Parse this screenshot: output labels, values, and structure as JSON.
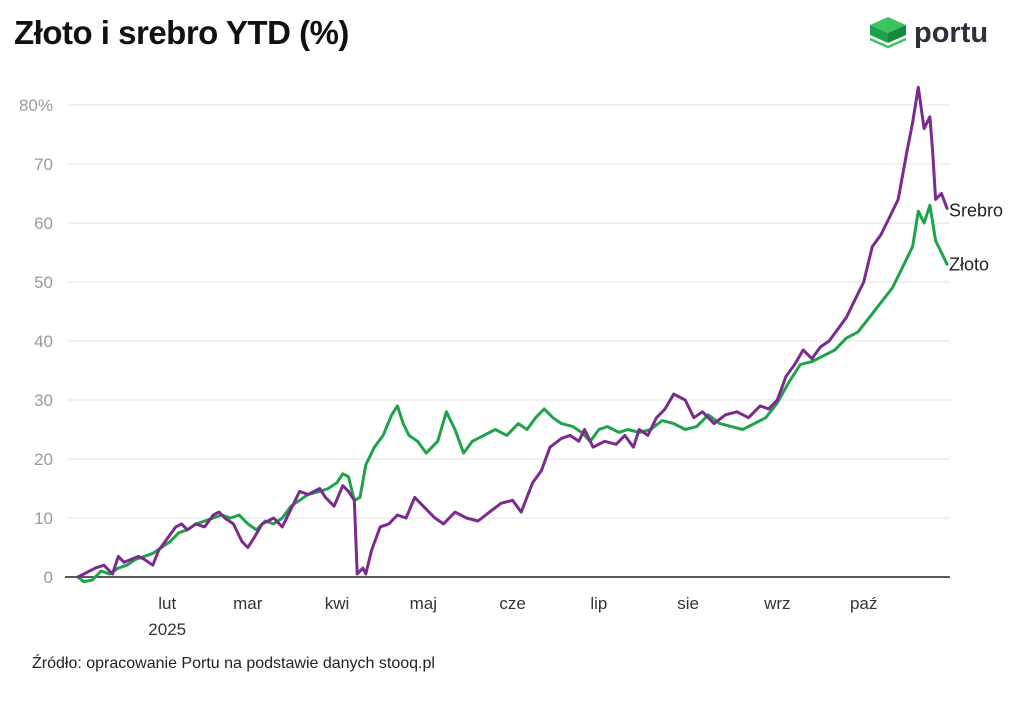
{
  "title": "Złoto i srebro YTD (%)",
  "logo": {
    "name": "portu",
    "icon": "portu-cube-icon",
    "color": "#1ea34a"
  },
  "source": "Źródło: opracowanie Portu na podstawie danych stooq.pl",
  "chart_data": {
    "type": "line",
    "title": "Złoto i srebro YTD (%)",
    "xlabel": "",
    "ylabel": "",
    "ylim": [
      0,
      80
    ],
    "y_ticks": [
      {
        "value": 0,
        "label": "0"
      },
      {
        "value": 10,
        "label": "10"
      },
      {
        "value": 20,
        "label": "20"
      },
      {
        "value": 30,
        "label": "30"
      },
      {
        "value": 40,
        "label": "40"
      },
      {
        "value": 50,
        "label": "50"
      },
      {
        "value": 60,
        "label": "60"
      },
      {
        "value": 70,
        "label": "70"
      },
      {
        "value": 80,
        "label": "80%"
      }
    ],
    "x_range": [
      "2025-01-01",
      "2025-10-31"
    ],
    "x_ticks": [
      {
        "date": "2025-02-01",
        "label": "lut",
        "sublabel": "2025"
      },
      {
        "date": "2025-03-01",
        "label": "mar"
      },
      {
        "date": "2025-04-01",
        "label": "kwi"
      },
      {
        "date": "2025-05-01",
        "label": "maj"
      },
      {
        "date": "2025-06-01",
        "label": "cze"
      },
      {
        "date": "2025-07-01",
        "label": "lip"
      },
      {
        "date": "2025-08-01",
        "label": "sie"
      },
      {
        "date": "2025-09-01",
        "label": "wrz"
      },
      {
        "date": "2025-10-01",
        "label": "paź"
      }
    ],
    "grid": true,
    "series": [
      {
        "name": "Srebro",
        "color": "#7b2a8e",
        "points": [
          [
            "2025-01-01",
            0
          ],
          [
            "2025-01-03",
            0.5
          ],
          [
            "2025-01-07",
            1.5
          ],
          [
            "2025-01-10",
            2
          ],
          [
            "2025-01-13",
            0.5
          ],
          [
            "2025-01-15",
            3.5
          ],
          [
            "2025-01-17",
            2.5
          ],
          [
            "2025-01-22",
            3.5
          ],
          [
            "2025-01-24",
            3
          ],
          [
            "2025-01-27",
            2
          ],
          [
            "2025-01-29",
            4.5
          ],
          [
            "2025-02-01",
            6.5
          ],
          [
            "2025-02-04",
            8.5
          ],
          [
            "2025-02-06",
            9
          ],
          [
            "2025-02-08",
            8
          ],
          [
            "2025-02-11",
            9
          ],
          [
            "2025-02-14",
            8.5
          ],
          [
            "2025-02-17",
            10.5
          ],
          [
            "2025-02-19",
            11
          ],
          [
            "2025-02-21",
            10
          ],
          [
            "2025-02-24",
            9
          ],
          [
            "2025-02-27",
            6
          ],
          [
            "2025-03-01",
            5
          ],
          [
            "2025-03-03",
            6.5
          ],
          [
            "2025-03-06",
            9
          ],
          [
            "2025-03-10",
            10
          ],
          [
            "2025-03-13",
            8.5
          ],
          [
            "2025-03-16",
            11.5
          ],
          [
            "2025-03-19",
            14.5
          ],
          [
            "2025-03-22",
            14
          ],
          [
            "2025-03-26",
            15
          ],
          [
            "2025-03-28",
            13.5
          ],
          [
            "2025-03-31",
            12
          ],
          [
            "2025-04-03",
            15.5
          ],
          [
            "2025-04-05",
            14.5
          ],
          [
            "2025-04-07",
            13
          ],
          [
            "2025-04-08",
            0.5
          ],
          [
            "2025-04-10",
            1.5
          ],
          [
            "2025-04-11",
            0.5
          ],
          [
            "2025-04-13",
            4.5
          ],
          [
            "2025-04-16",
            8.5
          ],
          [
            "2025-04-19",
            9
          ],
          [
            "2025-04-22",
            10.5
          ],
          [
            "2025-04-25",
            10
          ],
          [
            "2025-04-28",
            13.5
          ],
          [
            "2025-05-01",
            12
          ],
          [
            "2025-05-05",
            10
          ],
          [
            "2025-05-08",
            9
          ],
          [
            "2025-05-12",
            11
          ],
          [
            "2025-05-16",
            10
          ],
          [
            "2025-05-20",
            9.5
          ],
          [
            "2025-05-24",
            11
          ],
          [
            "2025-05-28",
            12.5
          ],
          [
            "2025-06-01",
            13
          ],
          [
            "2025-06-04",
            11
          ],
          [
            "2025-06-08",
            16
          ],
          [
            "2025-06-11",
            18
          ],
          [
            "2025-06-14",
            22
          ],
          [
            "2025-06-18",
            23.5
          ],
          [
            "2025-06-21",
            24
          ],
          [
            "2025-06-24",
            23
          ],
          [
            "2025-06-26",
            25
          ],
          [
            "2025-06-29",
            22
          ],
          [
            "2025-07-03",
            23
          ],
          [
            "2025-07-07",
            22.5
          ],
          [
            "2025-07-10",
            24
          ],
          [
            "2025-07-13",
            22
          ],
          [
            "2025-07-15",
            25
          ],
          [
            "2025-07-18",
            24
          ],
          [
            "2025-07-21",
            27
          ],
          [
            "2025-07-24",
            28.5
          ],
          [
            "2025-07-27",
            31
          ],
          [
            "2025-07-31",
            30
          ],
          [
            "2025-08-03",
            27
          ],
          [
            "2025-08-06",
            28
          ],
          [
            "2025-08-10",
            26
          ],
          [
            "2025-08-14",
            27.5
          ],
          [
            "2025-08-18",
            28
          ],
          [
            "2025-08-22",
            27
          ],
          [
            "2025-08-26",
            29
          ],
          [
            "2025-08-29",
            28.5
          ],
          [
            "2025-09-01",
            30
          ],
          [
            "2025-09-04",
            34
          ],
          [
            "2025-09-07",
            36
          ],
          [
            "2025-09-10",
            38.5
          ],
          [
            "2025-09-13",
            37
          ],
          [
            "2025-09-16",
            39
          ],
          [
            "2025-09-19",
            40
          ],
          [
            "2025-09-22",
            42
          ],
          [
            "2025-09-25",
            44
          ],
          [
            "2025-09-28",
            47
          ],
          [
            "2025-10-01",
            50
          ],
          [
            "2025-10-04",
            56
          ],
          [
            "2025-10-07",
            58
          ],
          [
            "2025-10-10",
            61
          ],
          [
            "2025-10-13",
            64
          ],
          [
            "2025-10-16",
            72
          ],
          [
            "2025-10-18",
            77
          ],
          [
            "2025-10-20",
            83
          ],
          [
            "2025-10-22",
            76
          ],
          [
            "2025-10-24",
            78
          ],
          [
            "2025-10-25",
            72
          ],
          [
            "2025-10-26",
            64
          ],
          [
            "2025-10-28",
            65
          ],
          [
            "2025-10-30",
            62.5
          ]
        ]
      },
      {
        "name": "Złoto",
        "color": "#1ea34a",
        "points": [
          [
            "2025-01-01",
            0
          ],
          [
            "2025-01-03",
            -0.8
          ],
          [
            "2025-01-06",
            -0.5
          ],
          [
            "2025-01-09",
            1
          ],
          [
            "2025-01-12",
            0.5
          ],
          [
            "2025-01-15",
            1.5
          ],
          [
            "2025-01-18",
            2
          ],
          [
            "2025-01-21",
            3
          ],
          [
            "2025-01-24",
            3.5
          ],
          [
            "2025-01-27",
            4
          ],
          [
            "2025-01-30",
            5
          ],
          [
            "2025-02-02",
            6
          ],
          [
            "2025-02-05",
            7.5
          ],
          [
            "2025-02-08",
            8
          ],
          [
            "2025-02-11",
            9
          ],
          [
            "2025-02-14",
            9.5
          ],
          [
            "2025-02-17",
            10
          ],
          [
            "2025-02-20",
            10.5
          ],
          [
            "2025-02-23",
            10
          ],
          [
            "2025-02-26",
            10.5
          ],
          [
            "2025-03-01",
            9
          ],
          [
            "2025-03-04",
            8
          ],
          [
            "2025-03-07",
            9.5
          ],
          [
            "2025-03-10",
            9
          ],
          [
            "2025-03-13",
            10
          ],
          [
            "2025-03-16",
            12
          ],
          [
            "2025-03-19",
            13
          ],
          [
            "2025-03-22",
            14
          ],
          [
            "2025-03-26",
            14.5
          ],
          [
            "2025-03-29",
            15
          ],
          [
            "2025-04-01",
            16
          ],
          [
            "2025-04-03",
            17.5
          ],
          [
            "2025-04-05",
            17
          ],
          [
            "2025-04-07",
            13
          ],
          [
            "2025-04-09",
            13.5
          ],
          [
            "2025-04-11",
            19
          ],
          [
            "2025-04-14",
            22
          ],
          [
            "2025-04-17",
            24
          ],
          [
            "2025-04-20",
            27.5
          ],
          [
            "2025-04-22",
            29
          ],
          [
            "2025-04-24",
            26
          ],
          [
            "2025-04-26",
            24
          ],
          [
            "2025-04-29",
            23
          ],
          [
            "2025-05-02",
            21
          ],
          [
            "2025-05-06",
            23
          ],
          [
            "2025-05-09",
            28
          ],
          [
            "2025-05-12",
            25
          ],
          [
            "2025-05-15",
            21
          ],
          [
            "2025-05-18",
            23
          ],
          [
            "2025-05-22",
            24
          ],
          [
            "2025-05-26",
            25
          ],
          [
            "2025-05-30",
            24
          ],
          [
            "2025-06-03",
            26
          ],
          [
            "2025-06-06",
            25
          ],
          [
            "2025-06-09",
            27
          ],
          [
            "2025-06-12",
            28.5
          ],
          [
            "2025-06-15",
            27
          ],
          [
            "2025-06-18",
            26
          ],
          [
            "2025-06-22",
            25.5
          ],
          [
            "2025-06-25",
            24.5
          ],
          [
            "2025-06-28",
            23
          ],
          [
            "2025-07-01",
            25
          ],
          [
            "2025-07-04",
            25.5
          ],
          [
            "2025-07-08",
            24.5
          ],
          [
            "2025-07-11",
            25
          ],
          [
            "2025-07-15",
            24.5
          ],
          [
            "2025-07-19",
            25
          ],
          [
            "2025-07-23",
            26.5
          ],
          [
            "2025-07-27",
            26
          ],
          [
            "2025-07-31",
            25
          ],
          [
            "2025-08-04",
            25.5
          ],
          [
            "2025-08-08",
            27.5
          ],
          [
            "2025-08-12",
            26
          ],
          [
            "2025-08-16",
            25.5
          ],
          [
            "2025-08-20",
            25
          ],
          [
            "2025-08-24",
            26
          ],
          [
            "2025-08-28",
            27
          ],
          [
            "2025-09-01",
            29.5
          ],
          [
            "2025-09-05",
            33
          ],
          [
            "2025-09-09",
            36
          ],
          [
            "2025-09-13",
            36.5
          ],
          [
            "2025-09-17",
            37.5
          ],
          [
            "2025-09-21",
            38.5
          ],
          [
            "2025-09-25",
            40.5
          ],
          [
            "2025-09-29",
            41.5
          ],
          [
            "2025-10-03",
            44
          ],
          [
            "2025-10-07",
            46.5
          ],
          [
            "2025-10-11",
            49
          ],
          [
            "2025-10-15",
            53
          ],
          [
            "2025-10-18",
            56
          ],
          [
            "2025-10-20",
            62
          ],
          [
            "2025-10-22",
            60
          ],
          [
            "2025-10-24",
            63
          ],
          [
            "2025-10-26",
            57
          ],
          [
            "2025-10-28",
            55
          ],
          [
            "2025-10-30",
            53
          ]
        ]
      }
    ]
  }
}
